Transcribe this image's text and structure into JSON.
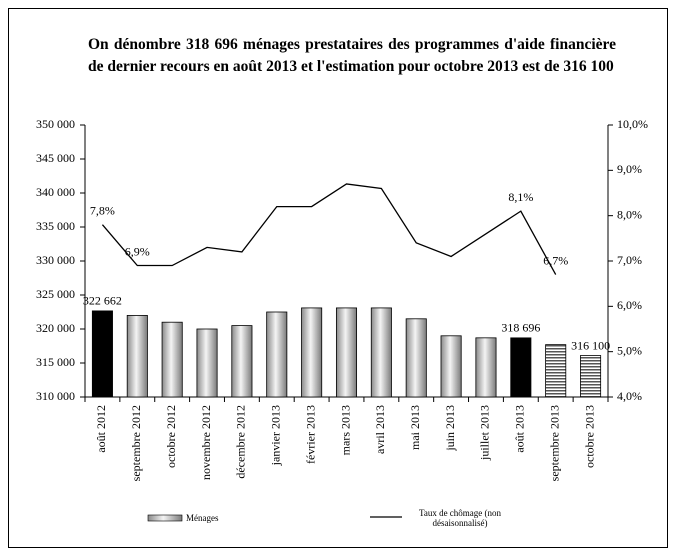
{
  "chart_data": {
    "type": "bar-line",
    "title": "On dénombre 318 696 ménages prestataires des programmes d'aide financière de dernier recours en août 2013 et l'estimation pour octobre 2013 est de 316 100",
    "categories": [
      "août 2012",
      "septembre 2012",
      "octobre 2012",
      "novembre 2012",
      "décembre 2012",
      "janvier 2013",
      "février 2013",
      "mars 2013",
      "avril 2013",
      "mai 2013",
      "juin 2013",
      "juillet 2013",
      "août 2013",
      "septembre 2013",
      "octobre 2013"
    ],
    "series": [
      {
        "name": "Ménages",
        "type": "bar",
        "color": "#a0a0a0",
        "values": [
          322662,
          322000,
          321000,
          320000,
          320500,
          322500,
          323100,
          323100,
          323100,
          321500,
          319000,
          318700,
          318696,
          317700,
          316100
        ],
        "value_labels": [
          "322 662",
          null,
          null,
          null,
          null,
          null,
          null,
          null,
          null,
          null,
          null,
          null,
          "318 696",
          null,
          "316 100"
        ],
        "patterns": [
          "solid",
          "gradient",
          "gradient",
          "gradient",
          "gradient",
          "gradient",
          "gradient",
          "gradient",
          "gradient",
          "gradient",
          "gradient",
          "gradient",
          "solid",
          "hatched",
          "hatched"
        ],
        "colors": [
          "#000000",
          "#a0a0a0",
          "#a0a0a0",
          "#a0a0a0",
          "#a0a0a0",
          "#a0a0a0",
          "#a0a0a0",
          "#a0a0a0",
          "#a0a0a0",
          "#a0a0a0",
          "#a0a0a0",
          "#a0a0a0",
          "#000000",
          "#808080",
          "#808080"
        ]
      },
      {
        "name": "Taux de chômage (non désaisonnalisé)",
        "type": "line",
        "axis": "y2",
        "color": "#000000",
        "values": [
          7.8,
          6.9,
          6.9,
          7.3,
          7.2,
          8.2,
          8.2,
          8.7,
          8.6,
          7.4,
          7.1,
          7.6,
          8.1,
          6.7,
          null
        ],
        "value_labels": [
          "7,8%",
          "6,9%",
          null,
          null,
          null,
          null,
          null,
          null,
          null,
          null,
          null,
          null,
          "8,1%",
          "6,7%",
          null
        ]
      }
    ],
    "ylim": [
      310000,
      350000
    ],
    "yticks": [
      {
        "value": 310000,
        "label": "310 000"
      },
      {
        "value": 315000,
        "label": "315 000"
      },
      {
        "value": 320000,
        "label": "320 000"
      },
      {
        "value": 325000,
        "label": "325 000"
      },
      {
        "value": 330000,
        "label": "330 000"
      },
      {
        "value": 335000,
        "label": "335 000"
      },
      {
        "value": 340000,
        "label": "340 000"
      },
      {
        "value": 345000,
        "label": "345 000"
      },
      {
        "value": 350000,
        "label": "350 000"
      }
    ],
    "y2lim": [
      4,
      10
    ],
    "y2ticks": [
      {
        "value": 4,
        "label": "4,0%"
      },
      {
        "value": 5,
        "label": "5,0%"
      },
      {
        "value": 6,
        "label": "6,0%"
      },
      {
        "value": 7,
        "label": "7,0%"
      },
      {
        "value": 8,
        "label": "8,0%"
      },
      {
        "value": 9,
        "label": "9,0%"
      },
      {
        "value": 10,
        "label": "10,0%"
      }
    ],
    "grid": false
  }
}
